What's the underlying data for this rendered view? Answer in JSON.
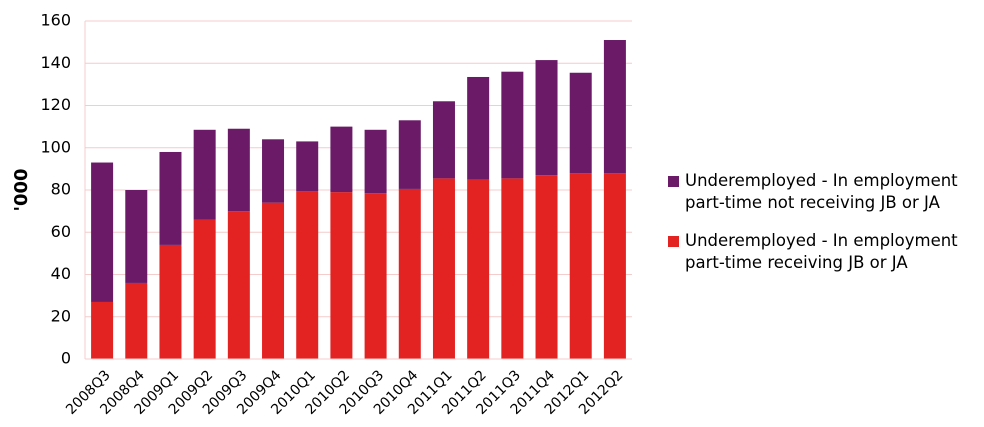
{
  "chart_data": {
    "type": "stacked_bar",
    "ylabel": "'000",
    "categories": [
      "2008Q3",
      "2008Q4",
      "2009Q1",
      "2009Q2",
      "2009Q3",
      "2009Q4",
      "2010Q1",
      "2010Q2",
      "2010Q3",
      "2010Q4",
      "2011Q1",
      "2011Q2",
      "2011Q3",
      "2011Q4",
      "2012Q1",
      "2012Q2"
    ],
    "series": [
      {
        "name": "Underemployed - In employment part-time receiving JB or JA",
        "color": "#e32322",
        "values": [
          27,
          36,
          54,
          66,
          70,
          74,
          79.5,
          79,
          78.5,
          80.5,
          85.5,
          85,
          85.5,
          87,
          88,
          88
        ]
      },
      {
        "name": "Underemployed - In employment part-time not receiving JB or JA",
        "color": "#6a1a66",
        "values": [
          66,
          44,
          44,
          42.5,
          39,
          30,
          23.5,
          31,
          30,
          32.5,
          36.5,
          48.5,
          50.5,
          54.5,
          47.5,
          63
        ]
      }
    ],
    "ylim": [
      0,
      160
    ],
    "yticks": [
      0,
      20,
      40,
      60,
      80,
      100,
      120,
      140,
      160
    ],
    "grid": true
  }
}
